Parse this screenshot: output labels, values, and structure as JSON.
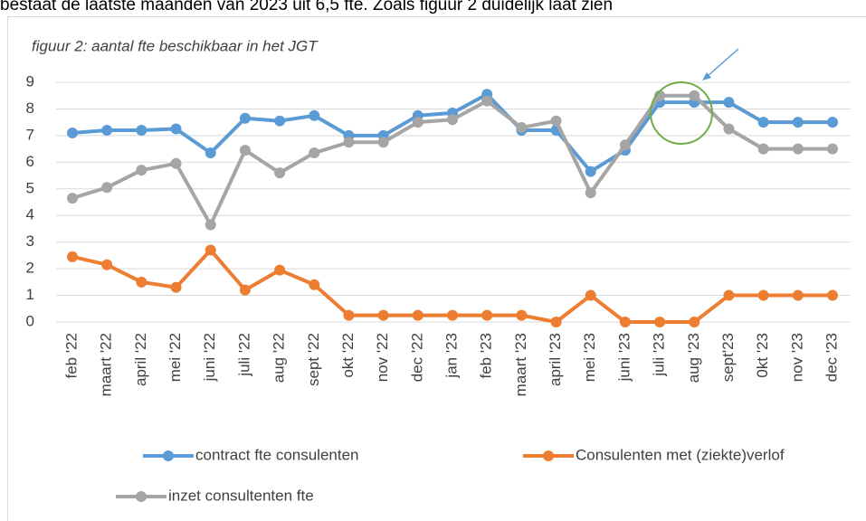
{
  "header_text": "bestaat de laatste maanden van 2023 uit 6,5 fte. Zoals figuur 2 duidelijk laat zien",
  "chart_data": {
    "type": "line",
    "title": "figuur 2: aantal fte beschikbaar in het JGT",
    "categories": [
      "feb '22",
      "maart '22",
      "april '22",
      "mei '22",
      "juni '22",
      "juli '22",
      "aug '22",
      "sept '22",
      "okt '22",
      "nov '22",
      "dec '22",
      "jan '23",
      "feb '23",
      "maart '23",
      "april '23",
      "mei '23",
      "juni '23",
      "juli '23",
      "aug '23",
      "sept'23",
      "0kt '23",
      "nov '23",
      "dec '23"
    ],
    "series": [
      {
        "name": "contract fte consulenten",
        "color": "#5b9bd5",
        "values": [
          7.1,
          7.2,
          7.2,
          7.25,
          6.35,
          7.65,
          7.55,
          7.75,
          7.0,
          7.0,
          7.75,
          7.85,
          8.55,
          7.2,
          7.2,
          5.65,
          6.45,
          8.25,
          8.25,
          8.25,
          7.5,
          7.5,
          7.5
        ]
      },
      {
        "name": "Consulenten met (ziekte)verlof",
        "color": "#ed7d31",
        "values": [
          2.45,
          2.15,
          1.5,
          1.3,
          2.7,
          1.2,
          1.95,
          1.4,
          0.25,
          0.25,
          0.25,
          0.25,
          0.25,
          0.25,
          0,
          1,
          0,
          0,
          0,
          1,
          1,
          1,
          1
        ]
      },
      {
        "name": "inzet consultenten fte",
        "color": "#a5a5a5",
        "values": [
          4.65,
          5.05,
          5.7,
          5.95,
          3.65,
          6.45,
          5.6,
          6.35,
          6.75,
          6.75,
          7.5,
          7.6,
          8.3,
          7.3,
          7.55,
          4.85,
          6.65,
          8.5,
          8.5,
          7.25,
          6.5,
          6.5,
          6.5
        ]
      }
    ],
    "ylim": [
      0,
      9
    ],
    "yticks": [
      0,
      1,
      2,
      3,
      4,
      5,
      6,
      7,
      8,
      9
    ],
    "grid": true,
    "legend": "bottom"
  }
}
